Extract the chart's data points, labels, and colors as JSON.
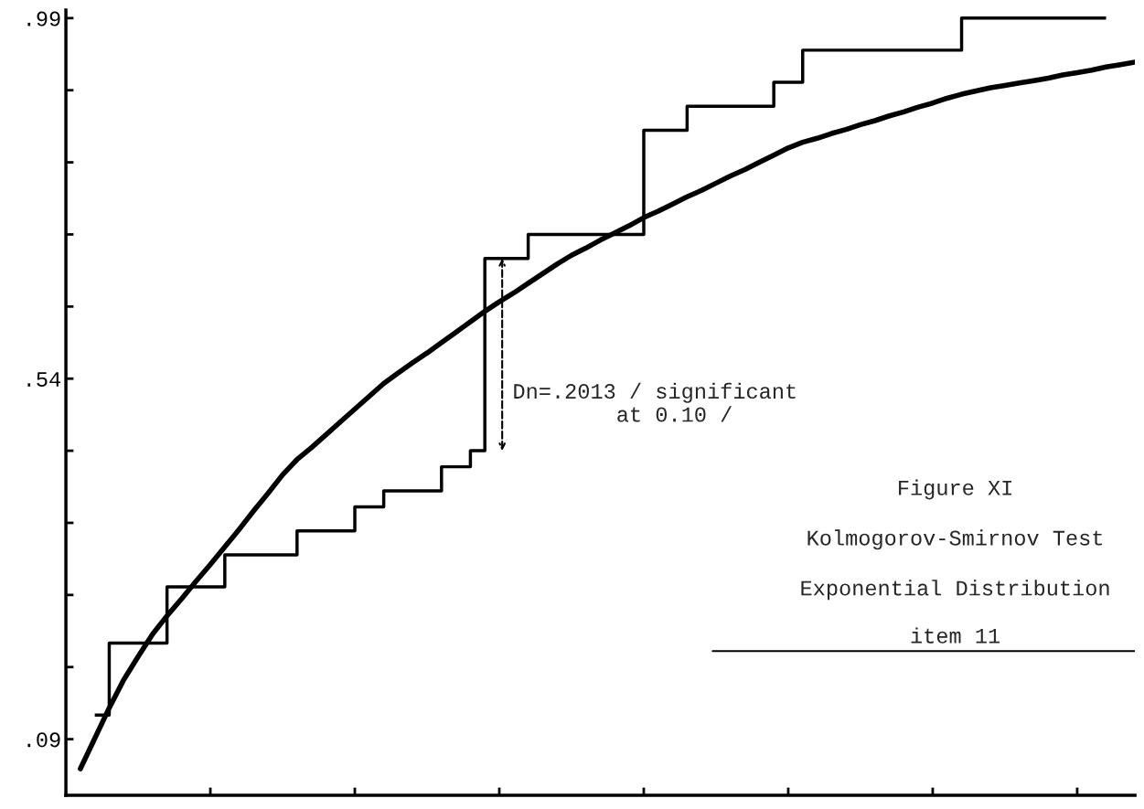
{
  "chart_data": {
    "type": "step",
    "categories": [
      null,
      null,
      null,
      null,
      null,
      null,
      null,
      null,
      null,
      null,
      null,
      null,
      null,
      null,
      null,
      null,
      null,
      null,
      null,
      null,
      null,
      null,
      null,
      null,
      null,
      null,
      null,
      null,
      null,
      null,
      null,
      null,
      null,
      null,
      null,
      null,
      null,
      null,
      null,
      null,
      null,
      null,
      null,
      null,
      null,
      null,
      null,
      null,
      null,
      null,
      null,
      null,
      null,
      null,
      null,
      null,
      null,
      null,
      null,
      null,
      null,
      null,
      null,
      null,
      null,
      null,
      null,
      null,
      null,
      null,
      null,
      null,
      null,
      null
    ],
    "series": [
      {
        "color": "#000000",
        "values": [
          null,
          0.12,
          0.21,
          0.21,
          0.21,
          0.21,
          0.28,
          0.28,
          0.28,
          0.28,
          0.32,
          0.32,
          0.32,
          0.32,
          0.32,
          0.35,
          0.35,
          0.35,
          0.35,
          0.38,
          0.38,
          0.4,
          0.4,
          0.4,
          0.4,
          0.43,
          0.43,
          0.45,
          0.69,
          0.69,
          0.69,
          0.72,
          0.72,
          0.72,
          0.72,
          0.72,
          0.72,
          0.72,
          0.72,
          0.85,
          0.85,
          0.85,
          0.88,
          0.88,
          0.88,
          0.88,
          0.88,
          0.88,
          0.91,
          0.91,
          0.95,
          0.95,
          0.95,
          0.95,
          0.95,
          0.95,
          0.95,
          0.95,
          0.95,
          0.95,
          0.95,
          0.99,
          0.99,
          0.99,
          0.99,
          0.99,
          0.99,
          0.99,
          0.99,
          0.99,
          0.99,
          0.99,
          null,
          null
        ]
      },
      {
        "type": "line",
        "color": "#000000",
        "values": [
          0.053,
          0.091,
          0.129,
          0.164,
          0.193,
          0.221,
          0.244,
          0.265,
          0.287,
          0.308,
          0.33,
          0.352,
          0.375,
          0.397,
          0.42,
          0.439,
          0.454,
          0.47,
          0.486,
          0.502,
          0.518,
          0.534,
          0.547,
          0.56,
          0.572,
          0.585,
          0.598,
          0.611,
          0.624,
          0.636,
          0.647,
          0.659,
          0.671,
          0.683,
          0.694,
          0.703,
          0.713,
          0.722,
          0.731,
          0.741,
          0.749,
          0.758,
          0.767,
          0.775,
          0.784,
          0.793,
          0.801,
          0.81,
          0.819,
          0.828,
          0.835,
          0.84,
          0.846,
          0.851,
          0.857,
          0.862,
          0.868,
          0.873,
          0.879,
          0.884,
          0.89,
          0.895,
          0.899,
          0.903,
          0.906,
          0.909,
          0.912,
          0.915,
          0.919,
          0.922,
          0.925,
          0.929,
          0.932,
          0.935
        ]
      }
    ],
    "ylim": [
      0.02,
      1.0
    ],
    "yticks": [
      {
        "value": 0.09,
        "label": ".09"
      },
      {
        "value": 0.18,
        "label": null
      },
      {
        "value": 0.27,
        "label": null
      },
      {
        "value": 0.36,
        "label": null
      },
      {
        "value": 0.45,
        "label": null
      },
      {
        "value": 0.54,
        "label": ".54"
      },
      {
        "value": 0.63,
        "label": null
      },
      {
        "value": 0.72,
        "label": null
      },
      {
        "value": 0.81,
        "label": null
      },
      {
        "value": 0.9,
        "label": null
      },
      {
        "value": 0.99,
        "label": ".99"
      }
    ],
    "tick_labels": "y",
    "ref_lines": [
      {
        "axis": "y",
        "value": 0.2,
        "color": "#000000"
      }
    ],
    "annotations": [
      "Dn=.2013 / significant\n        at 0.10 /",
      "Figure XI",
      "Kolmogorov-Smirnov Test",
      "Exponential Distribution",
      "item 11"
    ]
  }
}
